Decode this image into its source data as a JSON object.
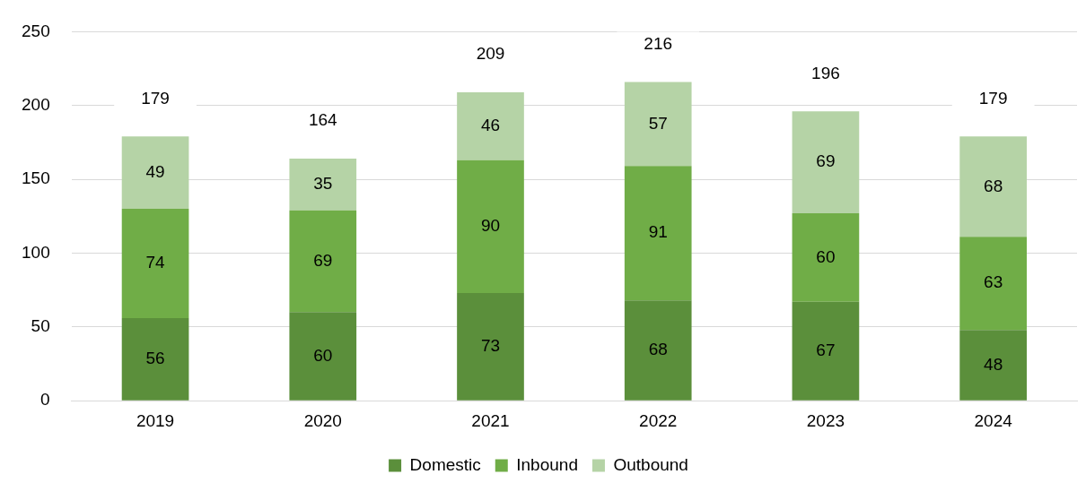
{
  "chart_data": {
    "type": "bar",
    "stacked": true,
    "categories": [
      "2019",
      "2020",
      "2021",
      "2022",
      "2023",
      "2024"
    ],
    "series": [
      {
        "name": "Domestic",
        "color": "#5b8f3b",
        "values": [
          56,
          60,
          73,
          68,
          67,
          48
        ]
      },
      {
        "name": "Inbound",
        "color": "#70ad47",
        "values": [
          74,
          69,
          90,
          91,
          60,
          63
        ]
      },
      {
        "name": "Outbound",
        "color": "#b5d3a6",
        "values": [
          49,
          35,
          46,
          57,
          69,
          68
        ]
      }
    ],
    "totals": [
      "179",
      "164",
      "209",
      "216",
      "196",
      "179"
    ],
    "data_labels": true,
    "ylim": [
      0,
      250
    ],
    "yticks": [
      0,
      50,
      100,
      150,
      200,
      250
    ],
    "grid": "y",
    "legend": "bottom"
  }
}
